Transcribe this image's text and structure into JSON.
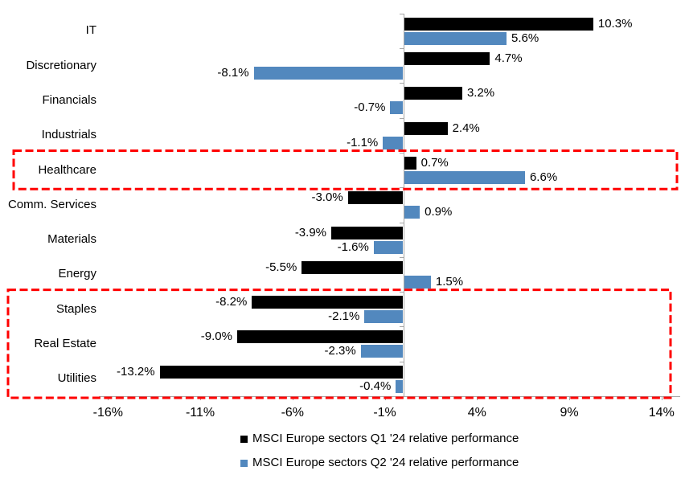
{
  "chart_data": {
    "type": "bar",
    "orientation": "horizontal",
    "title": "",
    "categories": [
      "IT",
      "Discretionary",
      "Financials",
      "Industrials",
      "Healthcare",
      "Comm. Services",
      "Materials",
      "Energy",
      "Staples",
      "Real Estate",
      "Utilities"
    ],
    "series": [
      {
        "name": "MSCI Europe sectors Q1 '24 relative performance",
        "color": "#000000",
        "values": [
          10.3,
          4.7,
          3.2,
          2.4,
          0.7,
          -3.0,
          -3.9,
          -5.5,
          -8.2,
          -9.0,
          -13.2
        ]
      },
      {
        "name": "MSCI Europe sectors Q2 '24 relative performance",
        "color": "#5288be",
        "values": [
          5.6,
          -8.1,
          -0.7,
          -1.1,
          6.6,
          0.9,
          -1.6,
          1.5,
          -2.1,
          -2.3,
          -0.4
        ]
      }
    ],
    "value_suffix": "%",
    "value_decimals": 1,
    "x_ticks": [
      "-16%",
      "-11%",
      "-6%",
      "-1%",
      "4%",
      "9%",
      "14%"
    ],
    "x_tick_values": [
      -16,
      -11,
      -6,
      -1,
      4,
      9,
      14
    ],
    "xlim": [
      -16.5,
      15
    ],
    "grid": false,
    "legend_position": "bottom",
    "axis_color": "#a6a6a6",
    "highlight_color": "#ff0000",
    "highlight_boxes": [
      {
        "name": "healthcare-highlight",
        "start_category": "Healthcare",
        "end_category": "Healthcare"
      },
      {
        "name": "defensives-highlight",
        "start_category": "Staples",
        "end_category": "Utilities"
      }
    ]
  }
}
